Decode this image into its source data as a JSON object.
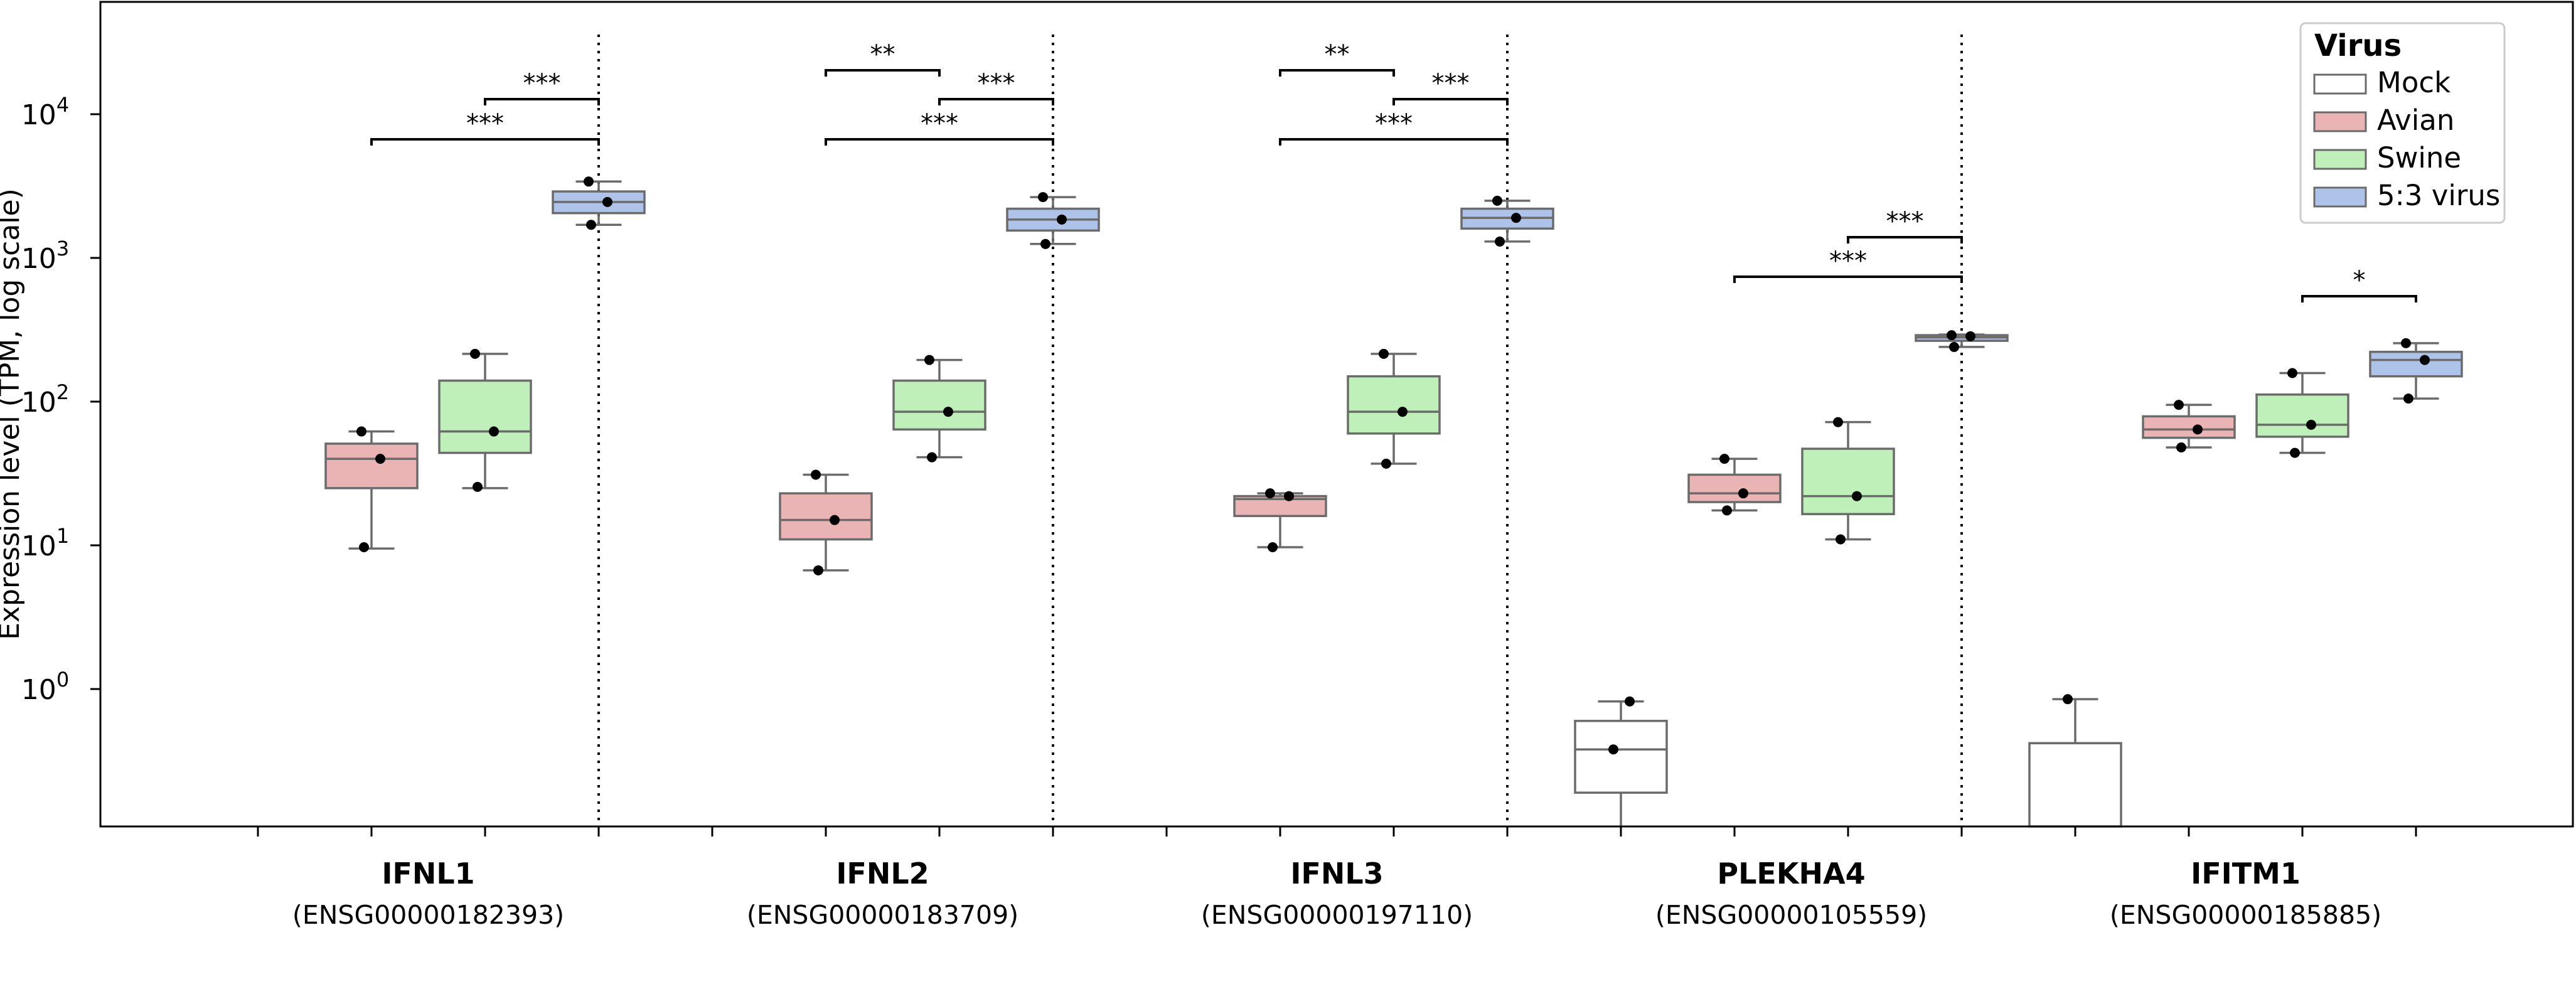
{
  "chart_data": {
    "type": "box",
    "ylabel": "Expression level (TPM, log scale)",
    "yscale": "log",
    "ylim": [
      0.1,
      50000
    ],
    "yticks": [
      {
        "value": 1,
        "base": "10",
        "exp": "0"
      },
      {
        "value": 10,
        "base": "10",
        "exp": "1"
      },
      {
        "value": 100,
        "base": "10",
        "exp": "2"
      },
      {
        "value": 1000,
        "base": "10",
        "exp": "3"
      },
      {
        "value": 10000,
        "base": "10",
        "exp": "4"
      }
    ],
    "legend": {
      "title": "Virus",
      "position": "top-right",
      "entries": [
        {
          "name": "Mock",
          "color": "#ffffff"
        },
        {
          "name": "Avian",
          "color": "#eab3b4"
        },
        {
          "name": "Swine",
          "color": "#bff0b9"
        },
        {
          "name": "5:3 virus",
          "color": "#aec3ea"
        }
      ]
    },
    "groups": [
      {
        "gene": "IFNL1",
        "ensembl": "(ENSG00000182393)",
        "boxes": [
          {
            "series": "Avian",
            "min": 9.5,
            "q1": 25,
            "median": 40,
            "q3": 51,
            "max": 62,
            "points": [
              9.7,
              40,
              62
            ]
          },
          {
            "series": "Swine",
            "min": 25,
            "q1": 44,
            "median": 62,
            "q3": 140,
            "max": 215,
            "points": [
              25.5,
              62,
              215
            ]
          },
          {
            "series": "5:3 virus",
            "min": 1700,
            "q1": 2050,
            "median": 2450,
            "q3": 2900,
            "max": 3400,
            "points": [
              1700,
              2450,
              3400
            ]
          }
        ],
        "sig": [
          {
            "from": "Swine",
            "to": "5:3 virus",
            "label": "***"
          },
          {
            "from": "Avian",
            "to": "5:3 virus",
            "label": "***"
          }
        ]
      },
      {
        "gene": "IFNL2",
        "ensembl": "(ENSG00000183709)",
        "boxes": [
          {
            "series": "Avian",
            "min": 6.7,
            "q1": 11,
            "median": 15,
            "q3": 23,
            "max": 31,
            "points": [
              6.7,
              15,
              31
            ]
          },
          {
            "series": "Swine",
            "min": 41,
            "q1": 64,
            "median": 85,
            "q3": 140,
            "max": 195,
            "points": [
              41,
              85,
              195
            ]
          },
          {
            "series": "5:3 virus",
            "min": 1250,
            "q1": 1550,
            "median": 1850,
            "q3": 2200,
            "max": 2650,
            "points": [
              1250,
              1850,
              2650
            ]
          }
        ],
        "sig": [
          {
            "from": "Avian",
            "to": "Swine",
            "label": "**"
          },
          {
            "from": "Swine",
            "to": "5:3 virus",
            "label": "***"
          },
          {
            "from": "Avian",
            "to": "5:3 virus",
            "label": "***"
          }
        ]
      },
      {
        "gene": "IFNL3",
        "ensembl": "(ENSG00000197110)",
        "boxes": [
          {
            "series": "Avian",
            "min": 9.7,
            "q1": 16,
            "median": 21,
            "q3": 22,
            "max": 23,
            "points": [
              9.7,
              22,
              23
            ]
          },
          {
            "series": "Swine",
            "min": 37,
            "q1": 60,
            "median": 85,
            "q3": 150,
            "max": 215,
            "points": [
              37,
              85,
              215
            ]
          },
          {
            "series": "5:3 virus",
            "min": 1300,
            "q1": 1600,
            "median": 1900,
            "q3": 2200,
            "max": 2500,
            "points": [
              1300,
              1900,
              2500
            ]
          }
        ],
        "sig": [
          {
            "from": "Avian",
            "to": "Swine",
            "label": "**"
          },
          {
            "from": "Swine",
            "to": "5:3 virus",
            "label": "***"
          },
          {
            "from": "Avian",
            "to": "5:3 virus",
            "label": "***"
          }
        ]
      },
      {
        "gene": "PLEKHA4",
        "ensembl": "(ENSG00000105559)",
        "boxes": [
          {
            "series": "Mock",
            "min": 0.1,
            "q1": 0.19,
            "median": 0.38,
            "q3": 0.6,
            "max": 0.82,
            "points": [
              0.38,
              0.82
            ]
          },
          {
            "series": "Avian",
            "min": 17.5,
            "q1": 20,
            "median": 23,
            "q3": 31,
            "max": 40,
            "points": [
              17.5,
              23,
              40
            ]
          },
          {
            "series": "Swine",
            "min": 11,
            "q1": 16.5,
            "median": 22,
            "q3": 47,
            "max": 72,
            "points": [
              11,
              22,
              72
            ]
          },
          {
            "series": "5:3 virus",
            "min": 240,
            "q1": 265,
            "median": 280,
            "q3": 290,
            "max": 293,
            "points": [
              240,
              285,
              290
            ]
          }
        ],
        "sig": [
          {
            "from": "Swine",
            "to": "5:3 virus",
            "label": "***"
          },
          {
            "from": "Avian",
            "to": "5:3 virus",
            "label": "***"
          }
        ]
      },
      {
        "gene": "IFITM1",
        "ensembl": "(ENSG00000185885)",
        "boxes": [
          {
            "series": "Mock",
            "min": 0.1,
            "q1": 0.1,
            "median": 0.1,
            "q3": 0.42,
            "max": 0.85,
            "points": [
              0.85
            ]
          },
          {
            "series": "Avian",
            "min": 48,
            "q1": 56,
            "median": 64,
            "q3": 79,
            "max": 95,
            "points": [
              48,
              64,
              95
            ]
          },
          {
            "series": "Swine",
            "min": 44,
            "q1": 57,
            "median": 69,
            "q3": 112,
            "max": 158,
            "points": [
              44,
              69,
              158
            ]
          },
          {
            "series": "5:3 virus",
            "min": 105,
            "q1": 150,
            "median": 195,
            "q3": 222,
            "max": 255,
            "points": [
              105,
              195,
              255
            ]
          }
        ],
        "sig": [
          {
            "from": "Swine",
            "to": "5:3 virus",
            "label": "*"
          }
        ]
      }
    ]
  }
}
